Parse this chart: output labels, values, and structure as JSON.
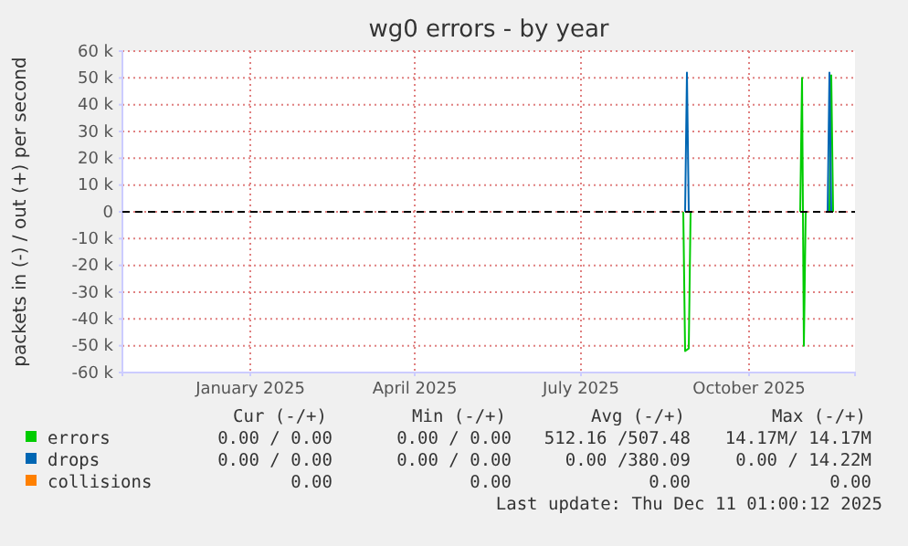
{
  "chart_data": {
    "type": "line",
    "title": "wg0 errors - by year",
    "ylabel": "packets in (-) / out (+) per second",
    "xlim": [
      "2024-10-23",
      "2025-11-28"
    ],
    "xticks": [
      {
        "value": "2025-01-01",
        "label": "January 2025"
      },
      {
        "value": "2025-04-01",
        "label": "April 2025"
      },
      {
        "value": "2025-07-01",
        "label": "July 2025"
      },
      {
        "value": "2025-10-01",
        "label": "October 2025"
      }
    ],
    "ylim": [
      -60000,
      60000
    ],
    "yticks": [
      {
        "value": -60000,
        "label": "-60 k"
      },
      {
        "value": -50000,
        "label": "-50 k"
      },
      {
        "value": -40000,
        "label": "-40 k"
      },
      {
        "value": -30000,
        "label": "-30 k"
      },
      {
        "value": -20000,
        "label": "-20 k"
      },
      {
        "value": -10000,
        "label": "-10 k"
      },
      0,
      {
        "value": 10000,
        "label": "10 k"
      },
      {
        "value": 20000,
        "label": "20 k"
      },
      {
        "value": 30000,
        "label": "30 k"
      },
      {
        "value": 40000,
        "label": "40 k"
      },
      {
        "value": 50000,
        "label": "50 k"
      },
      {
        "value": 60000,
        "label": "60 k"
      }
    ],
    "grid": true,
    "legend": "bottom",
    "ref_lines": [
      {
        "axis": "y",
        "value": 0,
        "color": "#000000",
        "line_style": "dashed"
      }
    ],
    "series": [
      {
        "name": "collisions",
        "color": "#ff8000"
      },
      {
        "name": "errors",
        "color": "#00cc00",
        "x": [
          "2025-08-26",
          "2025-08-27",
          "2025-08-29",
          "2025-08-30",
          "2025-09-30",
          "2025-10-29",
          "2025-10-30",
          "2025-10-31",
          "2025-11-01",
          "2025-11-07",
          "2025-11-14",
          "2025-11-15",
          "2025-11-16"
        ],
        "values": [
          0,
          -52000,
          -51000,
          0,
          null,
          0,
          50000,
          -50000,
          0,
          null,
          0,
          51000,
          0
        ]
      },
      {
        "name": "drops",
        "color": "#0066b3",
        "x": [
          "2025-08-27",
          "2025-08-28",
          "2025-08-29",
          "2025-10-01",
          "2025-11-13",
          "2025-11-14",
          "2025-11-15"
        ],
        "values": [
          0,
          52000,
          0,
          null,
          0,
          52000,
          0
        ]
      }
    ],
    "annotations": [
      "Cur (-/+)",
      "Min (-/+)",
      "Avg (-/+)",
      "Max (-/+)",
      "0.00 /  0.00",
      "0.00 /  0.00",
      "512.16 /507.48",
      "14.17M/ 14.17M",
      "0.00 /  0.00",
      "0.00 /  0.00",
      "0.00 /380.09",
      "0.00 / 14.22M",
      "0.00",
      "0.00",
      "0.00",
      "0.00",
      "Last update: Thu Dec 11 01:00:12 2025"
    ]
  }
}
